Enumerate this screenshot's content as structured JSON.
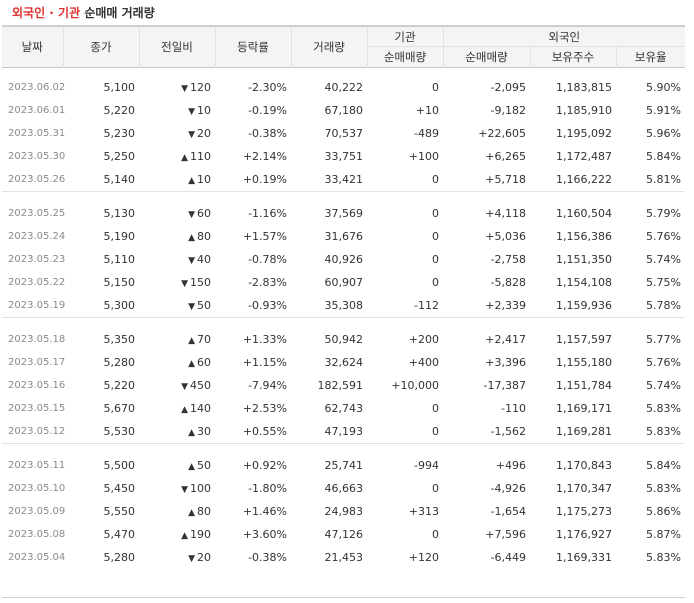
{
  "title": {
    "highlight": "외국인 · 기관",
    "main": "순매매 거래량"
  },
  "headers": {
    "date": "날짜",
    "close": "종가",
    "change": "전일비",
    "rate": "등락률",
    "volume": "거래량",
    "inst": "기관",
    "foreign": "외국인",
    "inst_net": "순매매량",
    "foreign_net": "순매매량",
    "foreign_hold": "보유주수",
    "foreign_ratio": "보유율"
  },
  "colors": {
    "up": "#dd2222",
    "down": "#1e5dbf",
    "title_highlight": "#dd3333"
  },
  "groups": [
    [
      {
        "date": "2023.06.02",
        "close": "5,100",
        "dir": "down",
        "change": "120",
        "rate": "-2.30%",
        "volume": "40,222",
        "inst": "0",
        "foreign": "-2,095",
        "hold": "1,183,815",
        "ratio": "5.90%"
      },
      {
        "date": "2023.06.01",
        "close": "5,220",
        "dir": "down",
        "change": "10",
        "rate": "-0.19%",
        "volume": "67,180",
        "inst": "+10",
        "foreign": "-9,182",
        "hold": "1,185,910",
        "ratio": "5.91%"
      },
      {
        "date": "2023.05.31",
        "close": "5,230",
        "dir": "down",
        "change": "20",
        "rate": "-0.38%",
        "volume": "70,537",
        "inst": "-489",
        "foreign": "+22,605",
        "hold": "1,195,092",
        "ratio": "5.96%"
      },
      {
        "date": "2023.05.30",
        "close": "5,250",
        "dir": "up",
        "change": "110",
        "rate": "+2.14%",
        "volume": "33,751",
        "inst": "+100",
        "foreign": "+6,265",
        "hold": "1,172,487",
        "ratio": "5.84%"
      },
      {
        "date": "2023.05.26",
        "close": "5,140",
        "dir": "up",
        "change": "10",
        "rate": "+0.19%",
        "volume": "33,421",
        "inst": "0",
        "foreign": "+5,718",
        "hold": "1,166,222",
        "ratio": "5.81%"
      }
    ],
    [
      {
        "date": "2023.05.25",
        "close": "5,130",
        "dir": "down",
        "change": "60",
        "rate": "-1.16%",
        "volume": "37,569",
        "inst": "0",
        "foreign": "+4,118",
        "hold": "1,160,504",
        "ratio": "5.79%"
      },
      {
        "date": "2023.05.24",
        "close": "5,190",
        "dir": "up",
        "change": "80",
        "rate": "+1.57%",
        "volume": "31,676",
        "inst": "0",
        "foreign": "+5,036",
        "hold": "1,156,386",
        "ratio": "5.76%"
      },
      {
        "date": "2023.05.23",
        "close": "5,110",
        "dir": "down",
        "change": "40",
        "rate": "-0.78%",
        "volume": "40,926",
        "inst": "0",
        "foreign": "-2,758",
        "hold": "1,151,350",
        "ratio": "5.74%"
      },
      {
        "date": "2023.05.22",
        "close": "5,150",
        "dir": "down",
        "change": "150",
        "rate": "-2.83%",
        "volume": "60,907",
        "inst": "0",
        "foreign": "-5,828",
        "hold": "1,154,108",
        "ratio": "5.75%"
      },
      {
        "date": "2023.05.19",
        "close": "5,300",
        "dir": "down",
        "change": "50",
        "rate": "-0.93%",
        "volume": "35,308",
        "inst": "-112",
        "foreign": "+2,339",
        "hold": "1,159,936",
        "ratio": "5.78%"
      }
    ],
    [
      {
        "date": "2023.05.18",
        "close": "5,350",
        "dir": "up",
        "change": "70",
        "rate": "+1.33%",
        "volume": "50,942",
        "inst": "+200",
        "foreign": "+2,417",
        "hold": "1,157,597",
        "ratio": "5.77%"
      },
      {
        "date": "2023.05.17",
        "close": "5,280",
        "dir": "up",
        "change": "60",
        "rate": "+1.15%",
        "volume": "32,624",
        "inst": "+400",
        "foreign": "+3,396",
        "hold": "1,155,180",
        "ratio": "5.76%"
      },
      {
        "date": "2023.05.16",
        "close": "5,220",
        "dir": "down",
        "change": "450",
        "rate": "-7.94%",
        "volume": "182,591",
        "inst": "+10,000",
        "foreign": "-17,387",
        "hold": "1,151,784",
        "ratio": "5.74%"
      },
      {
        "date": "2023.05.15",
        "close": "5,670",
        "dir": "up",
        "change": "140",
        "rate": "+2.53%",
        "volume": "62,743",
        "inst": "0",
        "foreign": "-110",
        "hold": "1,169,171",
        "ratio": "5.83%"
      },
      {
        "date": "2023.05.12",
        "close": "5,530",
        "dir": "up",
        "change": "30",
        "rate": "+0.55%",
        "volume": "47,193",
        "inst": "0",
        "foreign": "-1,562",
        "hold": "1,169,281",
        "ratio": "5.83%"
      }
    ],
    [
      {
        "date": "2023.05.11",
        "close": "5,500",
        "dir": "up",
        "change": "50",
        "rate": "+0.92%",
        "volume": "25,741",
        "inst": "-994",
        "foreign": "+496",
        "hold": "1,170,843",
        "ratio": "5.84%"
      },
      {
        "date": "2023.05.10",
        "close": "5,450",
        "dir": "down",
        "change": "100",
        "rate": "-1.80%",
        "volume": "46,663",
        "inst": "0",
        "foreign": "-4,926",
        "hold": "1,170,347",
        "ratio": "5.83%"
      },
      {
        "date": "2023.05.09",
        "close": "5,550",
        "dir": "up",
        "change": "80",
        "rate": "+1.46%",
        "volume": "24,983",
        "inst": "+313",
        "foreign": "-1,654",
        "hold": "1,175,273",
        "ratio": "5.86%"
      },
      {
        "date": "2023.05.08",
        "close": "5,470",
        "dir": "up",
        "change": "190",
        "rate": "+3.60%",
        "volume": "47,126",
        "inst": "0",
        "foreign": "+7,596",
        "hold": "1,176,927",
        "ratio": "5.87%"
      },
      {
        "date": "2023.05.04",
        "close": "5,280",
        "dir": "down",
        "change": "20",
        "rate": "-0.38%",
        "volume": "21,453",
        "inst": "+120",
        "foreign": "-6,449",
        "hold": "1,169,331",
        "ratio": "5.83%"
      }
    ]
  ]
}
